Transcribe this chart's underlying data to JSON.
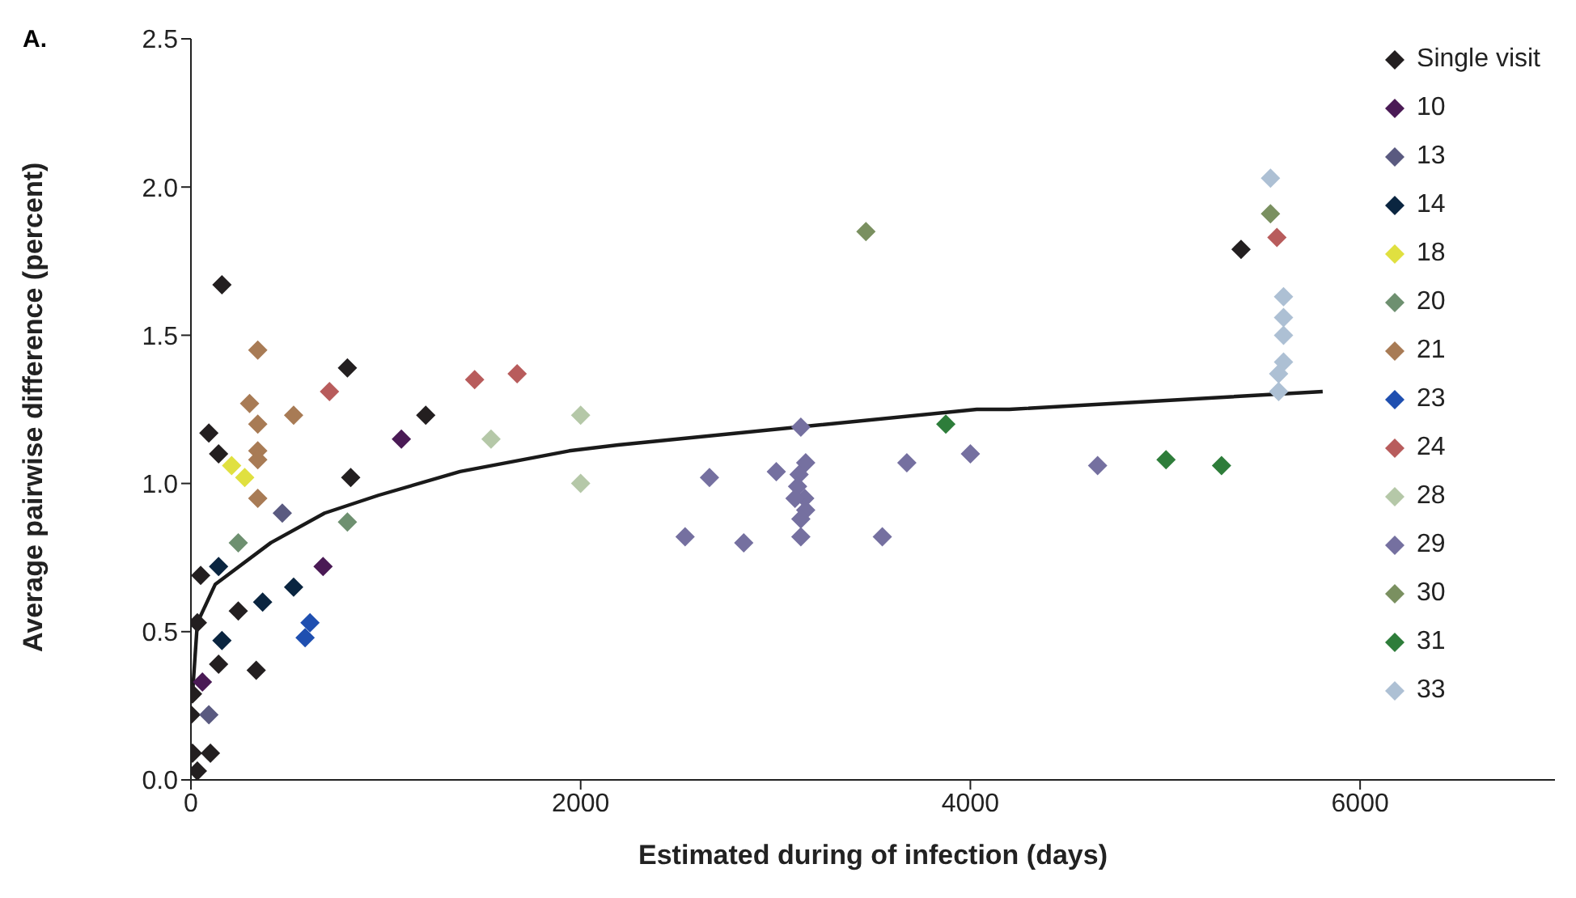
{
  "chart_data": {
    "type": "scatter",
    "annotations": [
      "A."
    ],
    "xlabel": "Estimated during of infection (days)",
    "ylabel": "Average pairwise difference (percent)",
    "xlim": [
      0,
      7000
    ],
    "xticks": [
      0,
      2000,
      4000,
      6000
    ],
    "ylim": [
      0,
      2.5
    ],
    "yticks": [
      {
        "value": 0,
        "label": "0.0"
      },
      0.5,
      {
        "value": 1,
        "label": "1.0"
      },
      1.5,
      {
        "value": 2,
        "label": "2.0"
      },
      2.5
    ],
    "grid": false,
    "legend": "top right",
    "marker": "diamond",
    "series": [
      {
        "name": "Single visit",
        "color": "#231f20",
        "x": [
          159,
          803,
          1205,
          92,
          142,
          820,
          50,
          243,
          33,
          142,
          335,
          8,
          0,
          8,
          100,
          33,
          5389
        ],
        "values": [
          1.67,
          1.39,
          1.23,
          1.17,
          1.1,
          1.02,
          0.69,
          0.57,
          0.53,
          0.39,
          0.37,
          0.29,
          0.22,
          0.09,
          0.09,
          0.03,
          1.79
        ]
      },
      {
        "name": "10",
        "color": "#4a1a55",
        "x": [
          59,
          1080,
          678
        ],
        "values": [
          0.33,
          1.15,
          0.72
        ]
      },
      {
        "name": "13",
        "color": "#5a5a80",
        "x": [
          92,
          469
        ],
        "values": [
          0.22,
          0.9
        ]
      },
      {
        "name": "14",
        "color": "#0a2540",
        "x": [
          142,
          159,
          368,
          527
        ],
        "values": [
          0.72,
          0.47,
          0.6,
          0.65
        ]
      },
      {
        "name": "18",
        "color": "#e0e040",
        "x": [
          209,
          276
        ],
        "values": [
          1.06,
          1.02
        ]
      },
      {
        "name": "20",
        "color": "#6e9070",
        "x": [
          243,
          803
        ],
        "values": [
          0.8,
          0.87
        ]
      },
      {
        "name": "21",
        "color": "#a87b55",
        "x": [
          343,
          301,
          343,
          527,
          343,
          343,
          343
        ],
        "values": [
          1.45,
          1.27,
          1.2,
          1.23,
          1.11,
          1.08,
          0.95
        ]
      },
      {
        "name": "23",
        "color": "#1f4fb0",
        "x": [
          611,
          586
        ],
        "values": [
          0.53,
          0.48
        ]
      },
      {
        "name": "24",
        "color": "#b85c5c",
        "x": [
          711,
          1456,
          1674,
          5573
        ],
        "values": [
          1.31,
          1.35,
          1.37,
          1.83
        ]
      },
      {
        "name": "28",
        "color": "#b5c8a8",
        "x": [
          1540,
          2000,
          2000
        ],
        "values": [
          1.15,
          1.23,
          1.0
        ]
      },
      {
        "name": "29",
        "color": "#7570a0",
        "x": [
          3130,
          2661,
          3004,
          3155,
          3121,
          3113,
          3150,
          3100,
          3155,
          3130,
          3130,
          2536,
          2837,
          3548,
          3674,
          4000,
          4653
        ],
        "values": [
          1.19,
          1.02,
          1.04,
          1.07,
          1.03,
          0.99,
          0.95,
          0.95,
          0.91,
          0.88,
          0.82,
          0.82,
          0.8,
          0.82,
          1.07,
          1.1,
          1.06
        ]
      },
      {
        "name": "30",
        "color": "#7a9060",
        "x": [
          3464,
          5540
        ],
        "values": [
          1.85,
          1.91
        ]
      },
      {
        "name": "31",
        "color": "#2e7d3a",
        "x": [
          3874,
          5004,
          5289
        ],
        "values": [
          1.2,
          1.08,
          1.06
        ]
      },
      {
        "name": "33",
        "color": "#adc0d4",
        "x": [
          5540,
          5607,
          5607,
          5607,
          5607,
          5582,
          5582
        ],
        "values": [
          2.03,
          1.63,
          1.56,
          1.5,
          1.41,
          1.37,
          1.31
        ]
      },
      {
        "type": "line",
        "marker": "none",
        "color": "#1a1a1a",
        "x": [
          8,
          33,
          125,
          410,
          686,
          962,
          1381,
          1941,
          2192,
          4033,
          4200,
          5808
        ],
        "values": [
          0.29,
          0.53,
          0.66,
          0.8,
          0.9,
          0.96,
          1.04,
          1.11,
          1.13,
          1.25,
          1.25,
          1.31
        ]
      }
    ]
  }
}
